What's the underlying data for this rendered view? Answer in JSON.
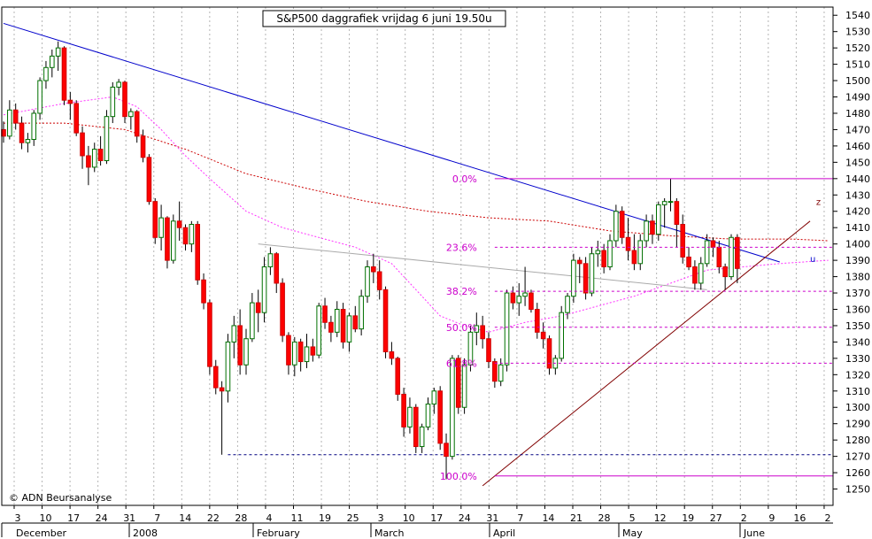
{
  "chart_data": {
    "type": "candlestick",
    "title": "S&P500 daggrafiek vrijdag 6 juni 19.50u",
    "copyright": "© ADN Beursanalyse",
    "ylim": [
      1240,
      1545
    ],
    "y_ticks": [
      1250,
      1260,
      1270,
      1280,
      1290,
      1300,
      1310,
      1320,
      1330,
      1340,
      1350,
      1360,
      1370,
      1380,
      1390,
      1400,
      1410,
      1420,
      1430,
      1440,
      1450,
      1460,
      1470,
      1480,
      1490,
      1500,
      1510,
      1520,
      1530,
      1540
    ],
    "x_day_labels": [
      "3",
      "10",
      "17",
      "24",
      "31",
      "7",
      "14",
      "22",
      "28",
      "4",
      "11",
      "19",
      "25",
      "3",
      "10",
      "17",
      "24",
      "31",
      "7",
      "14",
      "21",
      "28",
      "5",
      "12",
      "19",
      "27",
      "2",
      "9",
      "16",
      "2"
    ],
    "x_month_labels": [
      "December",
      "2008",
      "February",
      "March",
      "April",
      "May",
      "June"
    ],
    "grid": true,
    "candles": [
      [
        1470,
        1475,
        1462,
        1466
      ],
      [
        1466,
        1488,
        1464,
        1482
      ],
      [
        1482,
        1486,
        1470,
        1474
      ],
      [
        1474,
        1478,
        1458,
        1462
      ],
      [
        1462,
        1468,
        1456,
        1464
      ],
      [
        1464,
        1482,
        1460,
        1480
      ],
      [
        1480,
        1502,
        1476,
        1500
      ],
      [
        1500,
        1512,
        1495,
        1508
      ],
      [
        1508,
        1519,
        1502,
        1515
      ],
      [
        1515,
        1524,
        1506,
        1520
      ],
      [
        1520,
        1521,
        1485,
        1488
      ],
      [
        1488,
        1493,
        1476,
        1486
      ],
      [
        1486,
        1488,
        1466,
        1468
      ],
      [
        1468,
        1472,
        1446,
        1454
      ],
      [
        1454,
        1460,
        1436,
        1447
      ],
      [
        1447,
        1462,
        1444,
        1458
      ],
      [
        1458,
        1466,
        1448,
        1451
      ],
      [
        1451,
        1482,
        1449,
        1478
      ],
      [
        1478,
        1499,
        1474,
        1496
      ],
      [
        1496,
        1501,
        1491,
        1499
      ],
      [
        1499,
        1500,
        1474,
        1478
      ],
      [
        1478,
        1483,
        1470,
        1481
      ],
      [
        1481,
        1482,
        1462,
        1466
      ],
      [
        1466,
        1470,
        1450,
        1453
      ],
      [
        1453,
        1455,
        1424,
        1426
      ],
      [
        1426,
        1428,
        1400,
        1404
      ],
      [
        1404,
        1424,
        1396,
        1416
      ],
      [
        1416,
        1417,
        1385,
        1390
      ],
      [
        1390,
        1418,
        1388,
        1414
      ],
      [
        1414,
        1426,
        1402,
        1410
      ],
      [
        1410,
        1412,
        1396,
        1400
      ],
      [
        1400,
        1414,
        1395,
        1412
      ],
      [
        1412,
        1414,
        1375,
        1378
      ],
      [
        1378,
        1382,
        1360,
        1364
      ],
      [
        1364,
        1366,
        1320,
        1325
      ],
      [
        1325,
        1329,
        1308,
        1312
      ],
      [
        1312,
        1316,
        1271,
        1310
      ],
      [
        1310,
        1345,
        1303,
        1340
      ],
      [
        1340,
        1356,
        1330,
        1350
      ],
      [
        1350,
        1360,
        1320,
        1326
      ],
      [
        1326,
        1348,
        1320,
        1342
      ],
      [
        1342,
        1370,
        1340,
        1364
      ],
      [
        1364,
        1372,
        1346,
        1358
      ],
      [
        1358,
        1392,
        1352,
        1386
      ],
      [
        1386,
        1398,
        1381,
        1394
      ],
      [
        1394,
        1395,
        1370,
        1376
      ],
      [
        1376,
        1379,
        1340,
        1344
      ],
      [
        1344,
        1346,
        1320,
        1326
      ],
      [
        1326,
        1343,
        1319,
        1340
      ],
      [
        1340,
        1342,
        1322,
        1328
      ],
      [
        1328,
        1345,
        1324,
        1337
      ],
      [
        1337,
        1342,
        1328,
        1332
      ],
      [
        1332,
        1364,
        1330,
        1362
      ],
      [
        1362,
        1367,
        1348,
        1352
      ],
      [
        1352,
        1356,
        1340,
        1346
      ],
      [
        1346,
        1365,
        1343,
        1360
      ],
      [
        1360,
        1364,
        1336,
        1340
      ],
      [
        1340,
        1358,
        1334,
        1356
      ],
      [
        1356,
        1362,
        1346,
        1348
      ],
      [
        1348,
        1372,
        1344,
        1368
      ],
      [
        1368,
        1390,
        1364,
        1386
      ],
      [
        1386,
        1394,
        1376,
        1383
      ],
      [
        1383,
        1390,
        1366,
        1372
      ],
      [
        1372,
        1374,
        1330,
        1334
      ],
      [
        1334,
        1340,
        1326,
        1330
      ],
      [
        1330,
        1331,
        1304,
        1308
      ],
      [
        1308,
        1312,
        1282,
        1288
      ],
      [
        1288,
        1306,
        1284,
        1300
      ],
      [
        1300,
        1302,
        1272,
        1276
      ],
      [
        1276,
        1290,
        1272,
        1288
      ],
      [
        1288,
        1306,
        1286,
        1302
      ],
      [
        1302,
        1312,
        1296,
        1310
      ],
      [
        1310,
        1313,
        1274,
        1278
      ],
      [
        1278,
        1284,
        1256,
        1270
      ],
      [
        1270,
        1332,
        1268,
        1330
      ],
      [
        1330,
        1332,
        1296,
        1300
      ],
      [
        1300,
        1330,
        1296,
        1326
      ],
      [
        1326,
        1350,
        1322,
        1346
      ],
      [
        1346,
        1358,
        1338,
        1350
      ],
      [
        1350,
        1356,
        1336,
        1342
      ],
      [
        1342,
        1346,
        1324,
        1328
      ],
      [
        1328,
        1330,
        1312,
        1316
      ],
      [
        1316,
        1330,
        1313,
        1326
      ],
      [
        1326,
        1372,
        1322,
        1370
      ],
      [
        1370,
        1374,
        1360,
        1364
      ],
      [
        1364,
        1376,
        1356,
        1368
      ],
      [
        1368,
        1386,
        1362,
        1370
      ],
      [
        1370,
        1372,
        1358,
        1360
      ],
      [
        1360,
        1364,
        1342,
        1346
      ],
      [
        1346,
        1352,
        1336,
        1342
      ],
      [
        1342,
        1344,
        1320,
        1324
      ],
      [
        1324,
        1332,
        1320,
        1330
      ],
      [
        1330,
        1362,
        1328,
        1358
      ],
      [
        1358,
        1370,
        1354,
        1368
      ],
      [
        1368,
        1394,
        1364,
        1390
      ],
      [
        1390,
        1392,
        1376,
        1388
      ],
      [
        1388,
        1392,
        1366,
        1370
      ],
      [
        1370,
        1398,
        1368,
        1394
      ],
      [
        1394,
        1402,
        1386,
        1396
      ],
      [
        1396,
        1400,
        1382,
        1386
      ],
      [
        1386,
        1406,
        1384,
        1402
      ],
      [
        1402,
        1424,
        1398,
        1420
      ],
      [
        1420,
        1423,
        1400,
        1404
      ],
      [
        1404,
        1416,
        1390,
        1396
      ],
      [
        1396,
        1406,
        1384,
        1388
      ],
      [
        1388,
        1406,
        1384,
        1402
      ],
      [
        1402,
        1418,
        1398,
        1414
      ],
      [
        1414,
        1418,
        1400,
        1406
      ],
      [
        1406,
        1426,
        1402,
        1424
      ],
      [
        1424,
        1428,
        1410,
        1426
      ],
      [
        1426,
        1440,
        1420,
        1426
      ],
      [
        1426,
        1428,
        1398,
        1412
      ],
      [
        1412,
        1418,
        1388,
        1392
      ],
      [
        1392,
        1398,
        1384,
        1386
      ],
      [
        1386,
        1390,
        1372,
        1376
      ],
      [
        1376,
        1392,
        1372,
        1388
      ],
      [
        1388,
        1406,
        1386,
        1402
      ],
      [
        1402,
        1404,
        1392,
        1398
      ],
      [
        1398,
        1402,
        1382,
        1386
      ],
      [
        1386,
        1388,
        1372,
        1380
      ],
      [
        1380,
        1406,
        1378,
        1404
      ],
      [
        1404,
        1406,
        1376,
        1385
      ]
    ],
    "trend_lines": [
      {
        "name": "long-term-downtrend",
        "color": "#0000cc",
        "points": [
          [
            0,
            1535
          ],
          [
            128,
            1389
          ]
        ]
      },
      {
        "name": "neckline",
        "color": "#aaaaaa",
        "points": [
          [
            42,
            1400
          ],
          [
            116,
            1372
          ]
        ]
      },
      {
        "name": "uptrend",
        "color": "#800000",
        "points": [
          [
            79,
            1252
          ],
          [
            133,
            1414
          ]
        ]
      }
    ],
    "support_lines": [
      {
        "name": "low-1270",
        "value": 1271,
        "color": "#000080",
        "dashed": true,
        "from": 37,
        "to": 160
      }
    ],
    "fibonacci": {
      "color": "#cc00cc",
      "from_index": 81,
      "levels": [
        {
          "label": "0.0%",
          "value": 1440,
          "solid": true
        },
        {
          "label": "23.6%",
          "value": 1398,
          "solid": false
        },
        {
          "label": "38.2%",
          "value": 1371,
          "solid": false
        },
        {
          "label": "50.0%",
          "value": 1349,
          "solid": false
        },
        {
          "label": "61.8%",
          "value": 1327,
          "solid": false
        },
        {
          "label": "100.0%",
          "value": 1258,
          "solid": true
        }
      ]
    },
    "moving_averages": [
      {
        "name": "ma-slow",
        "color": "#cc0000",
        "points": [
          [
            0,
            1474
          ],
          [
            10,
            1474
          ],
          [
            20,
            1470
          ],
          [
            25,
            1464
          ],
          [
            30,
            1458
          ],
          [
            40,
            1443
          ],
          [
            50,
            1434
          ],
          [
            60,
            1426
          ],
          [
            70,
            1420
          ],
          [
            80,
            1416
          ],
          [
            90,
            1414
          ],
          [
            100,
            1408
          ],
          [
            110,
            1405
          ],
          [
            120,
            1403
          ],
          [
            130,
            1403
          ],
          [
            136,
            1402
          ]
        ]
      },
      {
        "name": "ma-fast",
        "color": "#ff33ff",
        "points": [
          [
            0,
            1479
          ],
          [
            10,
            1486
          ],
          [
            18,
            1490
          ],
          [
            22,
            1484
          ],
          [
            26,
            1470
          ],
          [
            30,
            1454
          ],
          [
            34,
            1440
          ],
          [
            40,
            1420
          ],
          [
            46,
            1410
          ],
          [
            52,
            1404
          ],
          [
            58,
            1398
          ],
          [
            64,
            1388
          ],
          [
            68,
            1372
          ],
          [
            72,
            1356
          ],
          [
            76,
            1350
          ],
          [
            80,
            1346
          ],
          [
            86,
            1352
          ],
          [
            92,
            1356
          ],
          [
            98,
            1362
          ],
          [
            104,
            1368
          ],
          [
            110,
            1376
          ],
          [
            116,
            1384
          ],
          [
            122,
            1386
          ],
          [
            128,
            1388
          ],
          [
            136,
            1390
          ]
        ]
      }
    ],
    "wave_labels": [
      {
        "text": "z",
        "index": 134,
        "value": 1424,
        "color": "#800000"
      },
      {
        "text": "u",
        "index": 133,
        "value": 1389,
        "color": "#0000cc"
      }
    ]
  }
}
